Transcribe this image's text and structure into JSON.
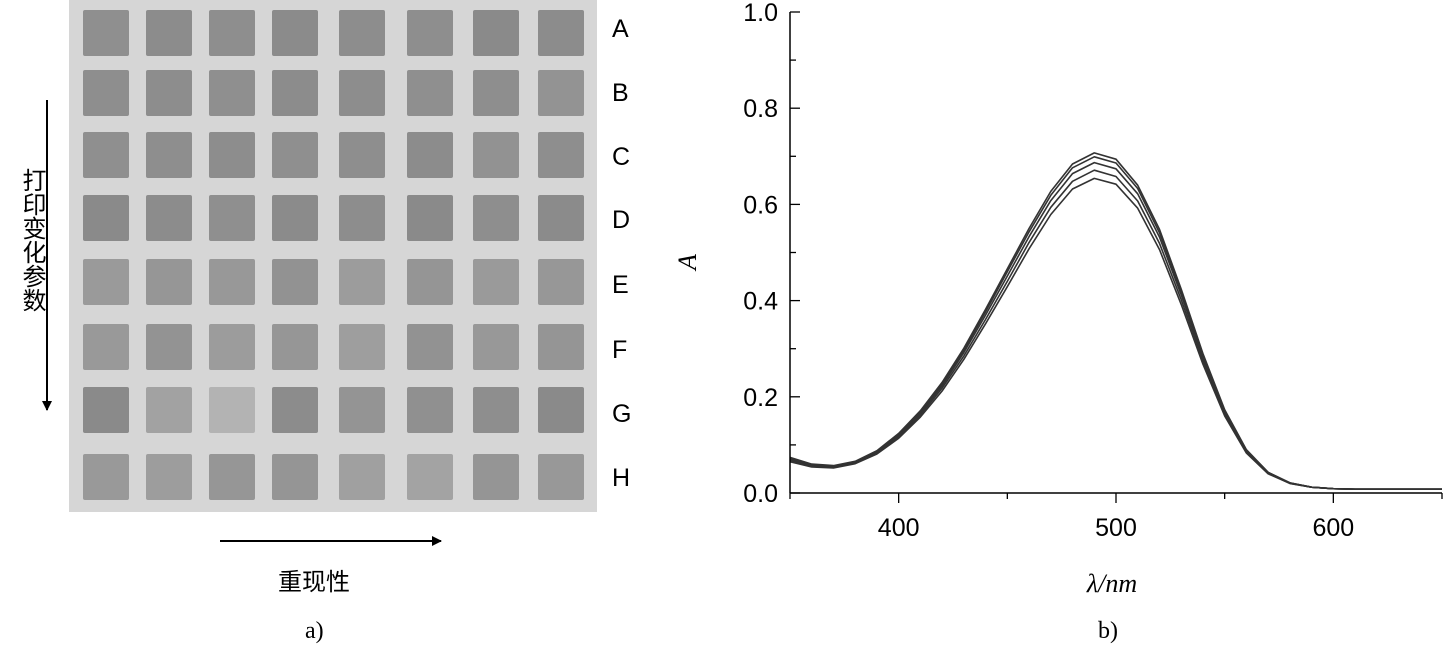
{
  "panel_a": {
    "row_labels": [
      "A",
      "B",
      "C",
      "D",
      "E",
      "F",
      "G",
      "H"
    ],
    "vertical_label": "打印变化参数",
    "horizontal_label": "重现性",
    "caption": "a)",
    "plate_color": "#d6d6d6",
    "well_colors": [
      [
        "#8f8f8f",
        "#8c8c8c",
        "#8e8e8e",
        "#8b8b8b",
        "#8d8d8d",
        "#8e8e8e",
        "#8a8a8a",
        "#8c8c8c"
      ],
      [
        "#8e8e8e",
        "#8d8d8d",
        "#8f8f8f",
        "#8c8c8c",
        "#8d8d8d",
        "#8f8f8f",
        "#8e8e8e",
        "#939393"
      ],
      [
        "#8f8f8f",
        "#8e8e8e",
        "#8d8d8d",
        "#8f8f8f",
        "#8e8e8e",
        "#8c8c8c",
        "#929292",
        "#8e8e8e"
      ],
      [
        "#8a8a8a",
        "#8c8c8c",
        "#8f8f8f",
        "#8b8b8b",
        "#8d8d8d",
        "#8a8a8a",
        "#8e8e8e",
        "#8b8b8b"
      ],
      [
        "#9a9a9a",
        "#969696",
        "#989898",
        "#929292",
        "#9c9c9c",
        "#959595",
        "#9a9a9a",
        "#979797"
      ],
      [
        "#999999",
        "#939393",
        "#9c9c9c",
        "#969696",
        "#9e9e9e",
        "#929292",
        "#989898",
        "#959595"
      ],
      [
        "#8a8a8a",
        "#a2a2a2",
        "#b3b3b3",
        "#8c8c8c",
        "#949494",
        "#909090",
        "#8e8e8e",
        "#8a8a8a"
      ],
      [
        "#999999",
        "#9d9d9d",
        "#969696",
        "#959595",
        "#a0a0a0",
        "#a3a3a3",
        "#959595",
        "#989898"
      ]
    ]
  },
  "chart_data": {
    "type": "line",
    "caption": "b)",
    "xlabel": "λ/nm",
    "ylabel": "A",
    "xlim": [
      350,
      650
    ],
    "ylim": [
      0,
      1.0
    ],
    "x_ticks": [
      400,
      500,
      600
    ],
    "y_ticks": [
      "0.0",
      "0.2",
      "0.4",
      "0.6",
      "0.8",
      "1.0"
    ],
    "grid": false,
    "legend": "none",
    "line_color": "#333333",
    "x": [
      350,
      360,
      370,
      380,
      390,
      400,
      410,
      420,
      430,
      440,
      450,
      460,
      470,
      480,
      490,
      500,
      510,
      520,
      530,
      540,
      550,
      560,
      570,
      580,
      590,
      600,
      610,
      620,
      630,
      640,
      650
    ],
    "series": [
      {
        "values": [
          0.065,
          0.054,
          0.052,
          0.061,
          0.081,
          0.114,
          0.158,
          0.212,
          0.278,
          0.352,
          0.429,
          0.508,
          0.579,
          0.632,
          0.654,
          0.642,
          0.592,
          0.506,
          0.392,
          0.268,
          0.16,
          0.083,
          0.04,
          0.02,
          0.012,
          0.009,
          0.008,
          0.008,
          0.008,
          0.008,
          0.008
        ]
      },
      {
        "values": [
          0.068,
          0.056,
          0.054,
          0.063,
          0.083,
          0.117,
          0.162,
          0.218,
          0.285,
          0.361,
          0.44,
          0.521,
          0.594,
          0.648,
          0.671,
          0.658,
          0.607,
          0.519,
          0.402,
          0.275,
          0.164,
          0.085,
          0.041,
          0.02,
          0.012,
          0.009,
          0.008,
          0.008,
          0.008,
          0.008,
          0.008
        ]
      },
      {
        "values": [
          0.07,
          0.058,
          0.055,
          0.064,
          0.085,
          0.12,
          0.166,
          0.223,
          0.292,
          0.37,
          0.451,
          0.533,
          0.608,
          0.664,
          0.687,
          0.674,
          0.622,
          0.532,
          0.412,
          0.282,
          0.168,
          0.087,
          0.042,
          0.021,
          0.012,
          0.009,
          0.008,
          0.008,
          0.008,
          0.008,
          0.008
        ]
      },
      {
        "values": [
          0.072,
          0.059,
          0.056,
          0.065,
          0.087,
          0.122,
          0.169,
          0.227,
          0.297,
          0.377,
          0.46,
          0.543,
          0.619,
          0.676,
          0.699,
          0.686,
          0.633,
          0.541,
          0.419,
          0.287,
          0.171,
          0.089,
          0.043,
          0.021,
          0.012,
          0.009,
          0.008,
          0.008,
          0.008,
          0.008,
          0.008
        ]
      },
      {
        "values": [
          0.074,
          0.06,
          0.057,
          0.066,
          0.088,
          0.124,
          0.171,
          0.23,
          0.301,
          0.382,
          0.466,
          0.55,
          0.627,
          0.684,
          0.707,
          0.694,
          0.64,
          0.548,
          0.424,
          0.29,
          0.173,
          0.09,
          0.043,
          0.021,
          0.012,
          0.009,
          0.008,
          0.008,
          0.008,
          0.008,
          0.008
        ]
      }
    ]
  }
}
